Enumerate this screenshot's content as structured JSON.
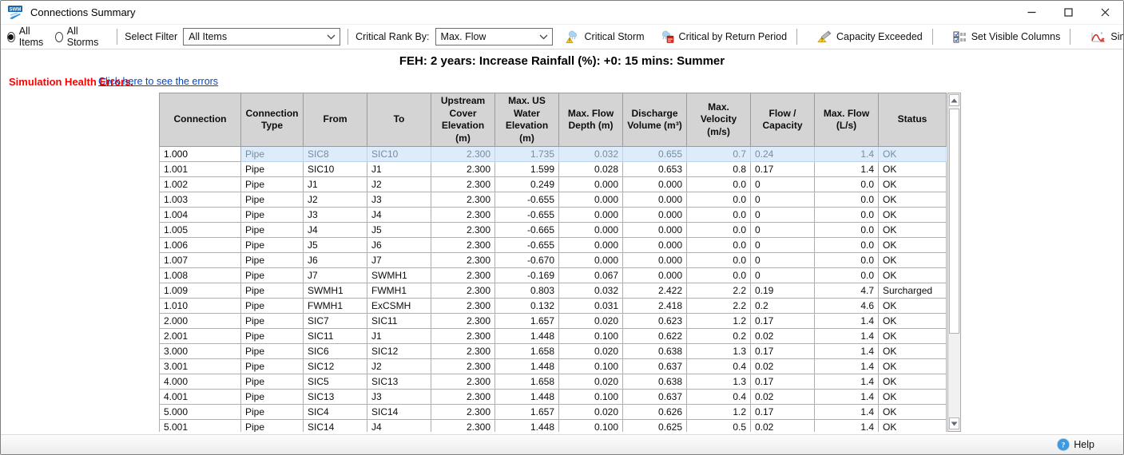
{
  "window": {
    "title": "Connections Summary"
  },
  "toolbar": {
    "radios": [
      {
        "label": "All Items",
        "selected": true
      },
      {
        "label": "All Storms",
        "selected": false
      }
    ],
    "select_filter": {
      "label": "Select Filter",
      "value": "All Items"
    },
    "critical_rank": {
      "label": "Critical Rank By:",
      "value": "Max. Flow"
    },
    "buttons": [
      {
        "label": "Critical Storm",
        "icon": "critical-storm-icon"
      },
      {
        "label": "Critical by Return Period",
        "icon": "critical-by-return-period-icon"
      },
      {
        "label": "Capacity Exceeded",
        "icon": "capacity-exceeded-icon"
      },
      {
        "label": "Set Visible Columns",
        "icon": "set-visible-columns-icon"
      },
      {
        "label": "Simulation Health Warnings",
        "icon": "simulation-health-warnings-icon"
      }
    ]
  },
  "context_header": "FEH: 2 years: Increase Rainfall (%): +0: 15 mins: Summer",
  "health_errors": {
    "label": "Simulation Health Errors.",
    "link_text": "Click here to see the errors"
  },
  "table": {
    "columns": [
      "Connection",
      "Connection Type",
      "From",
      "To",
      "Upstream Cover Elevation (m)",
      "Max. US Water Elevation (m)",
      "Max. Flow Depth (m)",
      "Discharge Volume (m³)",
      "Max. Velocity (m/s)",
      "Flow / Capacity",
      "Max. Flow (L/s)",
      "Status"
    ],
    "selected_row_index": 0,
    "rows": [
      [
        "1.000",
        "Pipe",
        "SIC8",
        "SIC10",
        "2.300",
        "1.735",
        "0.032",
        "0.655",
        "0.7",
        "0.24",
        "1.4",
        "OK"
      ],
      [
        "1.001",
        "Pipe",
        "SIC10",
        "J1",
        "2.300",
        "1.599",
        "0.028",
        "0.653",
        "0.8",
        "0.17",
        "1.4",
        "OK"
      ],
      [
        "1.002",
        "Pipe",
        "J1",
        "J2",
        "2.300",
        "0.249",
        "0.000",
        "0.000",
        "0.0",
        "0",
        "0.0",
        "OK"
      ],
      [
        "1.003",
        "Pipe",
        "J2",
        "J3",
        "2.300",
        "-0.655",
        "0.000",
        "0.000",
        "0.0",
        "0",
        "0.0",
        "OK"
      ],
      [
        "1.004",
        "Pipe",
        "J3",
        "J4",
        "2.300",
        "-0.655",
        "0.000",
        "0.000",
        "0.0",
        "0",
        "0.0",
        "OK"
      ],
      [
        "1.005",
        "Pipe",
        "J4",
        "J5",
        "2.300",
        "-0.665",
        "0.000",
        "0.000",
        "0.0",
        "0",
        "0.0",
        "OK"
      ],
      [
        "1.006",
        "Pipe",
        "J5",
        "J6",
        "2.300",
        "-0.655",
        "0.000",
        "0.000",
        "0.0",
        "0",
        "0.0",
        "OK"
      ],
      [
        "1.007",
        "Pipe",
        "J6",
        "J7",
        "2.300",
        "-0.670",
        "0.000",
        "0.000",
        "0.0",
        "0",
        "0.0",
        "OK"
      ],
      [
        "1.008",
        "Pipe",
        "J7",
        "SWMH1",
        "2.300",
        "-0.169",
        "0.067",
        "0.000",
        "0.0",
        "0",
        "0.0",
        "OK"
      ],
      [
        "1.009",
        "Pipe",
        "SWMH1",
        "FWMH1",
        "2.300",
        "0.803",
        "0.032",
        "2.422",
        "2.2",
        "0.19",
        "4.7",
        "Surcharged"
      ],
      [
        "1.010",
        "Pipe",
        "FWMH1",
        "ExCSMH",
        "2.300",
        "0.132",
        "0.031",
        "2.418",
        "2.2",
        "0.2",
        "4.6",
        "OK"
      ],
      [
        "2.000",
        "Pipe",
        "SIC7",
        "SIC11",
        "2.300",
        "1.657",
        "0.020",
        "0.623",
        "1.2",
        "0.17",
        "1.4",
        "OK"
      ],
      [
        "2.001",
        "Pipe",
        "SIC11",
        "J1",
        "2.300",
        "1.448",
        "0.100",
        "0.622",
        "0.2",
        "0.02",
        "1.4",
        "OK"
      ],
      [
        "3.000",
        "Pipe",
        "SIC6",
        "SIC12",
        "2.300",
        "1.658",
        "0.020",
        "0.638",
        "1.3",
        "0.17",
        "1.4",
        "OK"
      ],
      [
        "3.001",
        "Pipe",
        "SIC12",
        "J2",
        "2.300",
        "1.448",
        "0.100",
        "0.637",
        "0.4",
        "0.02",
        "1.4",
        "OK"
      ],
      [
        "4.000",
        "Pipe",
        "SIC5",
        "SIC13",
        "2.300",
        "1.658",
        "0.020",
        "0.638",
        "1.3",
        "0.17",
        "1.4",
        "OK"
      ],
      [
        "4.001",
        "Pipe",
        "SIC13",
        "J3",
        "2.300",
        "1.448",
        "0.100",
        "0.637",
        "0.4",
        "0.02",
        "1.4",
        "OK"
      ],
      [
        "5.000",
        "Pipe",
        "SIC4",
        "SIC14",
        "2.300",
        "1.657",
        "0.020",
        "0.626",
        "1.2",
        "0.17",
        "1.4",
        "OK"
      ],
      [
        "5.001",
        "Pipe",
        "SIC14",
        "J4",
        "2.300",
        "1.448",
        "0.100",
        "0.625",
        "0.5",
        "0.02",
        "1.4",
        "OK"
      ]
    ]
  },
  "statusbar": {
    "help_label": "Help"
  }
}
